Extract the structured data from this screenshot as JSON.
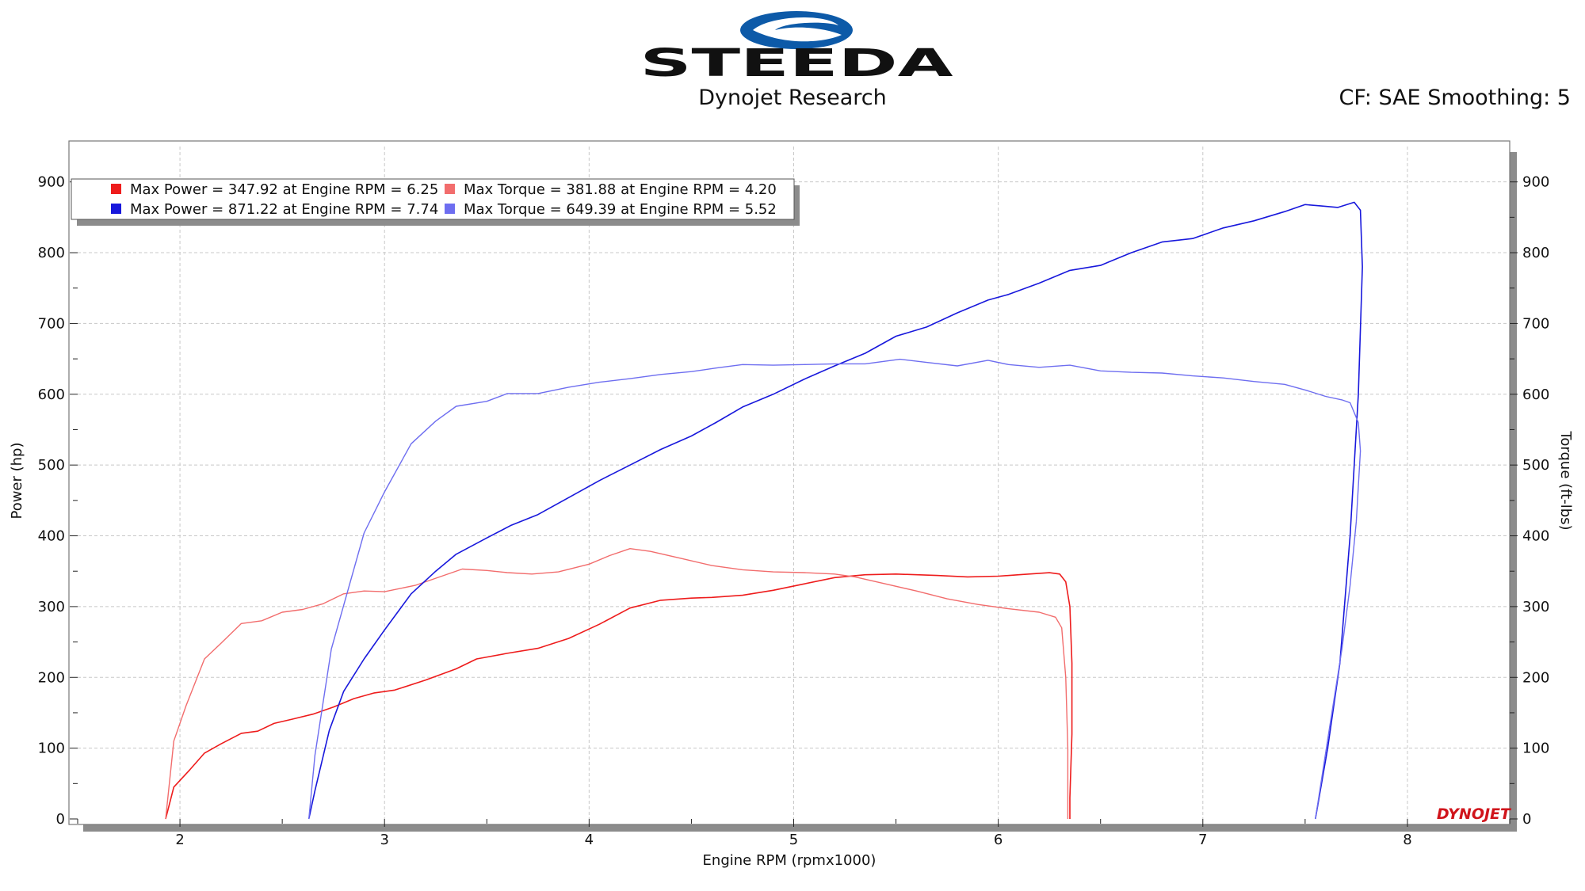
{
  "header": {
    "logo_text": "STEEDA",
    "subtitle": "Dynojet Research",
    "cf_text": "CF: SAE Smoothing: 5",
    "brand_colors": {
      "logo_blue": "#0d5aa8",
      "logo_black": "#111111"
    }
  },
  "watermark": {
    "text": "DYNOJET",
    "color": "#d0141b"
  },
  "chart_data": {
    "type": "line",
    "xlabel": "Engine RPM (rpmx1000)",
    "ylabel_left": "Power (hp)",
    "ylabel_right": "Torque (ft-lbs)",
    "xlim": [
      1.5,
      8.5
    ],
    "ylim": [
      0,
      950
    ],
    "x_ticks": [
      2,
      3,
      4,
      5,
      6,
      7,
      8
    ],
    "y_ticks": [
      0,
      100,
      200,
      300,
      400,
      500,
      600,
      700,
      800,
      900
    ],
    "grid": true,
    "legend_position": "top-left",
    "legend": [
      {
        "text": "Max Power = 347.92 at Engine RPM = 6.25",
        "color": "#ee1c1c"
      },
      {
        "text": "Max Torque = 381.88 at Engine RPM = 4.20",
        "color": "#f26d6d"
      },
      {
        "text": "Max Power = 871.22 at Engine RPM = 7.74",
        "color": "#1818dc"
      },
      {
        "text": "Max Torque = 649.39 at Engine RPM = 5.52",
        "color": "#6e6ef0"
      }
    ],
    "series": [
      {
        "color": "#ee1c1c",
        "width": 1.6,
        "points": [
          [
            1.93,
            0
          ],
          [
            1.97,
            45
          ],
          [
            2.05,
            70
          ],
          [
            2.12,
            93
          ],
          [
            2.2,
            106
          ],
          [
            2.3,
            121
          ],
          [
            2.38,
            124
          ],
          [
            2.46,
            135
          ],
          [
            2.55,
            141
          ],
          [
            2.65,
            148
          ],
          [
            2.75,
            158
          ],
          [
            2.85,
            170
          ],
          [
            2.95,
            178
          ],
          [
            3.05,
            182
          ],
          [
            3.2,
            196
          ],
          [
            3.35,
            212
          ],
          [
            3.45,
            226
          ],
          [
            3.6,
            234
          ],
          [
            3.75,
            241
          ],
          [
            3.9,
            255
          ],
          [
            4.05,
            275
          ],
          [
            4.2,
            298
          ],
          [
            4.35,
            309
          ],
          [
            4.5,
            312
          ],
          [
            4.6,
            313
          ],
          [
            4.75,
            316
          ],
          [
            4.9,
            323
          ],
          [
            5.05,
            332
          ],
          [
            5.2,
            341
          ],
          [
            5.35,
            345
          ],
          [
            5.5,
            346
          ],
          [
            5.7,
            344
          ],
          [
            5.85,
            342
          ],
          [
            6.0,
            343
          ],
          [
            6.1,
            345
          ],
          [
            6.2,
            347
          ],
          [
            6.25,
            347.9
          ],
          [
            6.3,
            346
          ],
          [
            6.33,
            335
          ],
          [
            6.35,
            300
          ],
          [
            6.36,
            220
          ],
          [
            6.36,
            120
          ],
          [
            6.35,
            30
          ],
          [
            6.35,
            0
          ]
        ]
      },
      {
        "color": "#f26d6d",
        "width": 1.4,
        "points": [
          [
            1.93,
            0
          ],
          [
            1.97,
            110
          ],
          [
            2.03,
            160
          ],
          [
            2.12,
            226
          ],
          [
            2.2,
            248
          ],
          [
            2.3,
            276
          ],
          [
            2.4,
            280
          ],
          [
            2.5,
            292
          ],
          [
            2.6,
            296
          ],
          [
            2.7,
            304
          ],
          [
            2.8,
            318
          ],
          [
            2.9,
            322
          ],
          [
            3.0,
            321
          ],
          [
            3.15,
            330
          ],
          [
            3.25,
            340
          ],
          [
            3.38,
            353
          ],
          [
            3.5,
            351
          ],
          [
            3.6,
            348
          ],
          [
            3.72,
            346
          ],
          [
            3.85,
            349
          ],
          [
            4.0,
            360
          ],
          [
            4.1,
            372
          ],
          [
            4.2,
            381.9
          ],
          [
            4.3,
            378
          ],
          [
            4.45,
            368
          ],
          [
            4.6,
            358
          ],
          [
            4.75,
            352
          ],
          [
            4.9,
            349
          ],
          [
            5.05,
            348
          ],
          [
            5.2,
            346
          ],
          [
            5.3,
            342
          ],
          [
            5.45,
            332
          ],
          [
            5.6,
            322
          ],
          [
            5.75,
            311
          ],
          [
            5.9,
            303
          ],
          [
            6.05,
            297
          ],
          [
            6.2,
            292
          ],
          [
            6.28,
            285
          ],
          [
            6.31,
            270
          ],
          [
            6.33,
            200
          ],
          [
            6.34,
            100
          ],
          [
            6.34,
            0
          ]
        ]
      },
      {
        "color": "#1818dc",
        "width": 1.6,
        "points": [
          [
            2.63,
            0
          ],
          [
            2.66,
            40
          ],
          [
            2.73,
            125
          ],
          [
            2.8,
            180
          ],
          [
            2.9,
            226
          ],
          [
            3.0,
            267
          ],
          [
            3.13,
            318
          ],
          [
            3.25,
            350
          ],
          [
            3.35,
            374
          ],
          [
            3.5,
            397
          ],
          [
            3.62,
            415
          ],
          [
            3.75,
            430
          ],
          [
            3.9,
            454
          ],
          [
            4.05,
            478
          ],
          [
            4.2,
            500
          ],
          [
            4.35,
            522
          ],
          [
            4.5,
            541
          ],
          [
            4.62,
            560
          ],
          [
            4.75,
            582
          ],
          [
            4.9,
            600
          ],
          [
            5.05,
            621
          ],
          [
            5.2,
            640
          ],
          [
            5.35,
            658
          ],
          [
            5.5,
            682
          ],
          [
            5.65,
            695
          ],
          [
            5.8,
            715
          ],
          [
            5.95,
            733
          ],
          [
            6.05,
            741
          ],
          [
            6.2,
            757
          ],
          [
            6.35,
            775
          ],
          [
            6.5,
            782
          ],
          [
            6.65,
            800
          ],
          [
            6.8,
            815
          ],
          [
            6.95,
            820
          ],
          [
            7.1,
            835
          ],
          [
            7.25,
            845
          ],
          [
            7.4,
            858
          ],
          [
            7.5,
            868
          ],
          [
            7.58,
            866
          ],
          [
            7.66,
            864
          ],
          [
            7.74,
            871.2
          ],
          [
            7.77,
            860
          ],
          [
            7.78,
            780
          ],
          [
            7.76,
            600
          ],
          [
            7.72,
            400
          ],
          [
            7.67,
            220
          ],
          [
            7.61,
            100
          ],
          [
            7.55,
            0
          ]
        ]
      },
      {
        "color": "#6e6ef0",
        "width": 1.4,
        "points": [
          [
            2.63,
            0
          ],
          [
            2.66,
            90
          ],
          [
            2.74,
            240
          ],
          [
            2.9,
            404
          ],
          [
            3.0,
            462
          ],
          [
            3.13,
            530
          ],
          [
            3.25,
            562
          ],
          [
            3.35,
            583
          ],
          [
            3.5,
            590
          ],
          [
            3.6,
            601
          ],
          [
            3.75,
            601
          ],
          [
            3.9,
            610
          ],
          [
            4.05,
            617
          ],
          [
            4.2,
            622
          ],
          [
            4.35,
            628
          ],
          [
            4.5,
            632
          ],
          [
            4.62,
            637
          ],
          [
            4.75,
            642
          ],
          [
            4.9,
            641
          ],
          [
            5.05,
            642
          ],
          [
            5.2,
            643
          ],
          [
            5.35,
            643
          ],
          [
            5.52,
            649.4
          ],
          [
            5.65,
            645
          ],
          [
            5.8,
            640
          ],
          [
            5.95,
            648
          ],
          [
            6.05,
            642
          ],
          [
            6.2,
            638
          ],
          [
            6.35,
            641
          ],
          [
            6.5,
            633
          ],
          [
            6.65,
            631
          ],
          [
            6.8,
            630
          ],
          [
            6.95,
            626
          ],
          [
            7.1,
            623
          ],
          [
            7.25,
            618
          ],
          [
            7.4,
            614
          ],
          [
            7.5,
            606
          ],
          [
            7.6,
            597
          ],
          [
            7.68,
            592
          ],
          [
            7.72,
            588
          ],
          [
            7.76,
            560
          ],
          [
            7.77,
            520
          ],
          [
            7.75,
            420
          ],
          [
            7.72,
            330
          ],
          [
            7.68,
            240
          ],
          [
            7.62,
            130
          ],
          [
            7.55,
            0
          ]
        ]
      }
    ]
  }
}
